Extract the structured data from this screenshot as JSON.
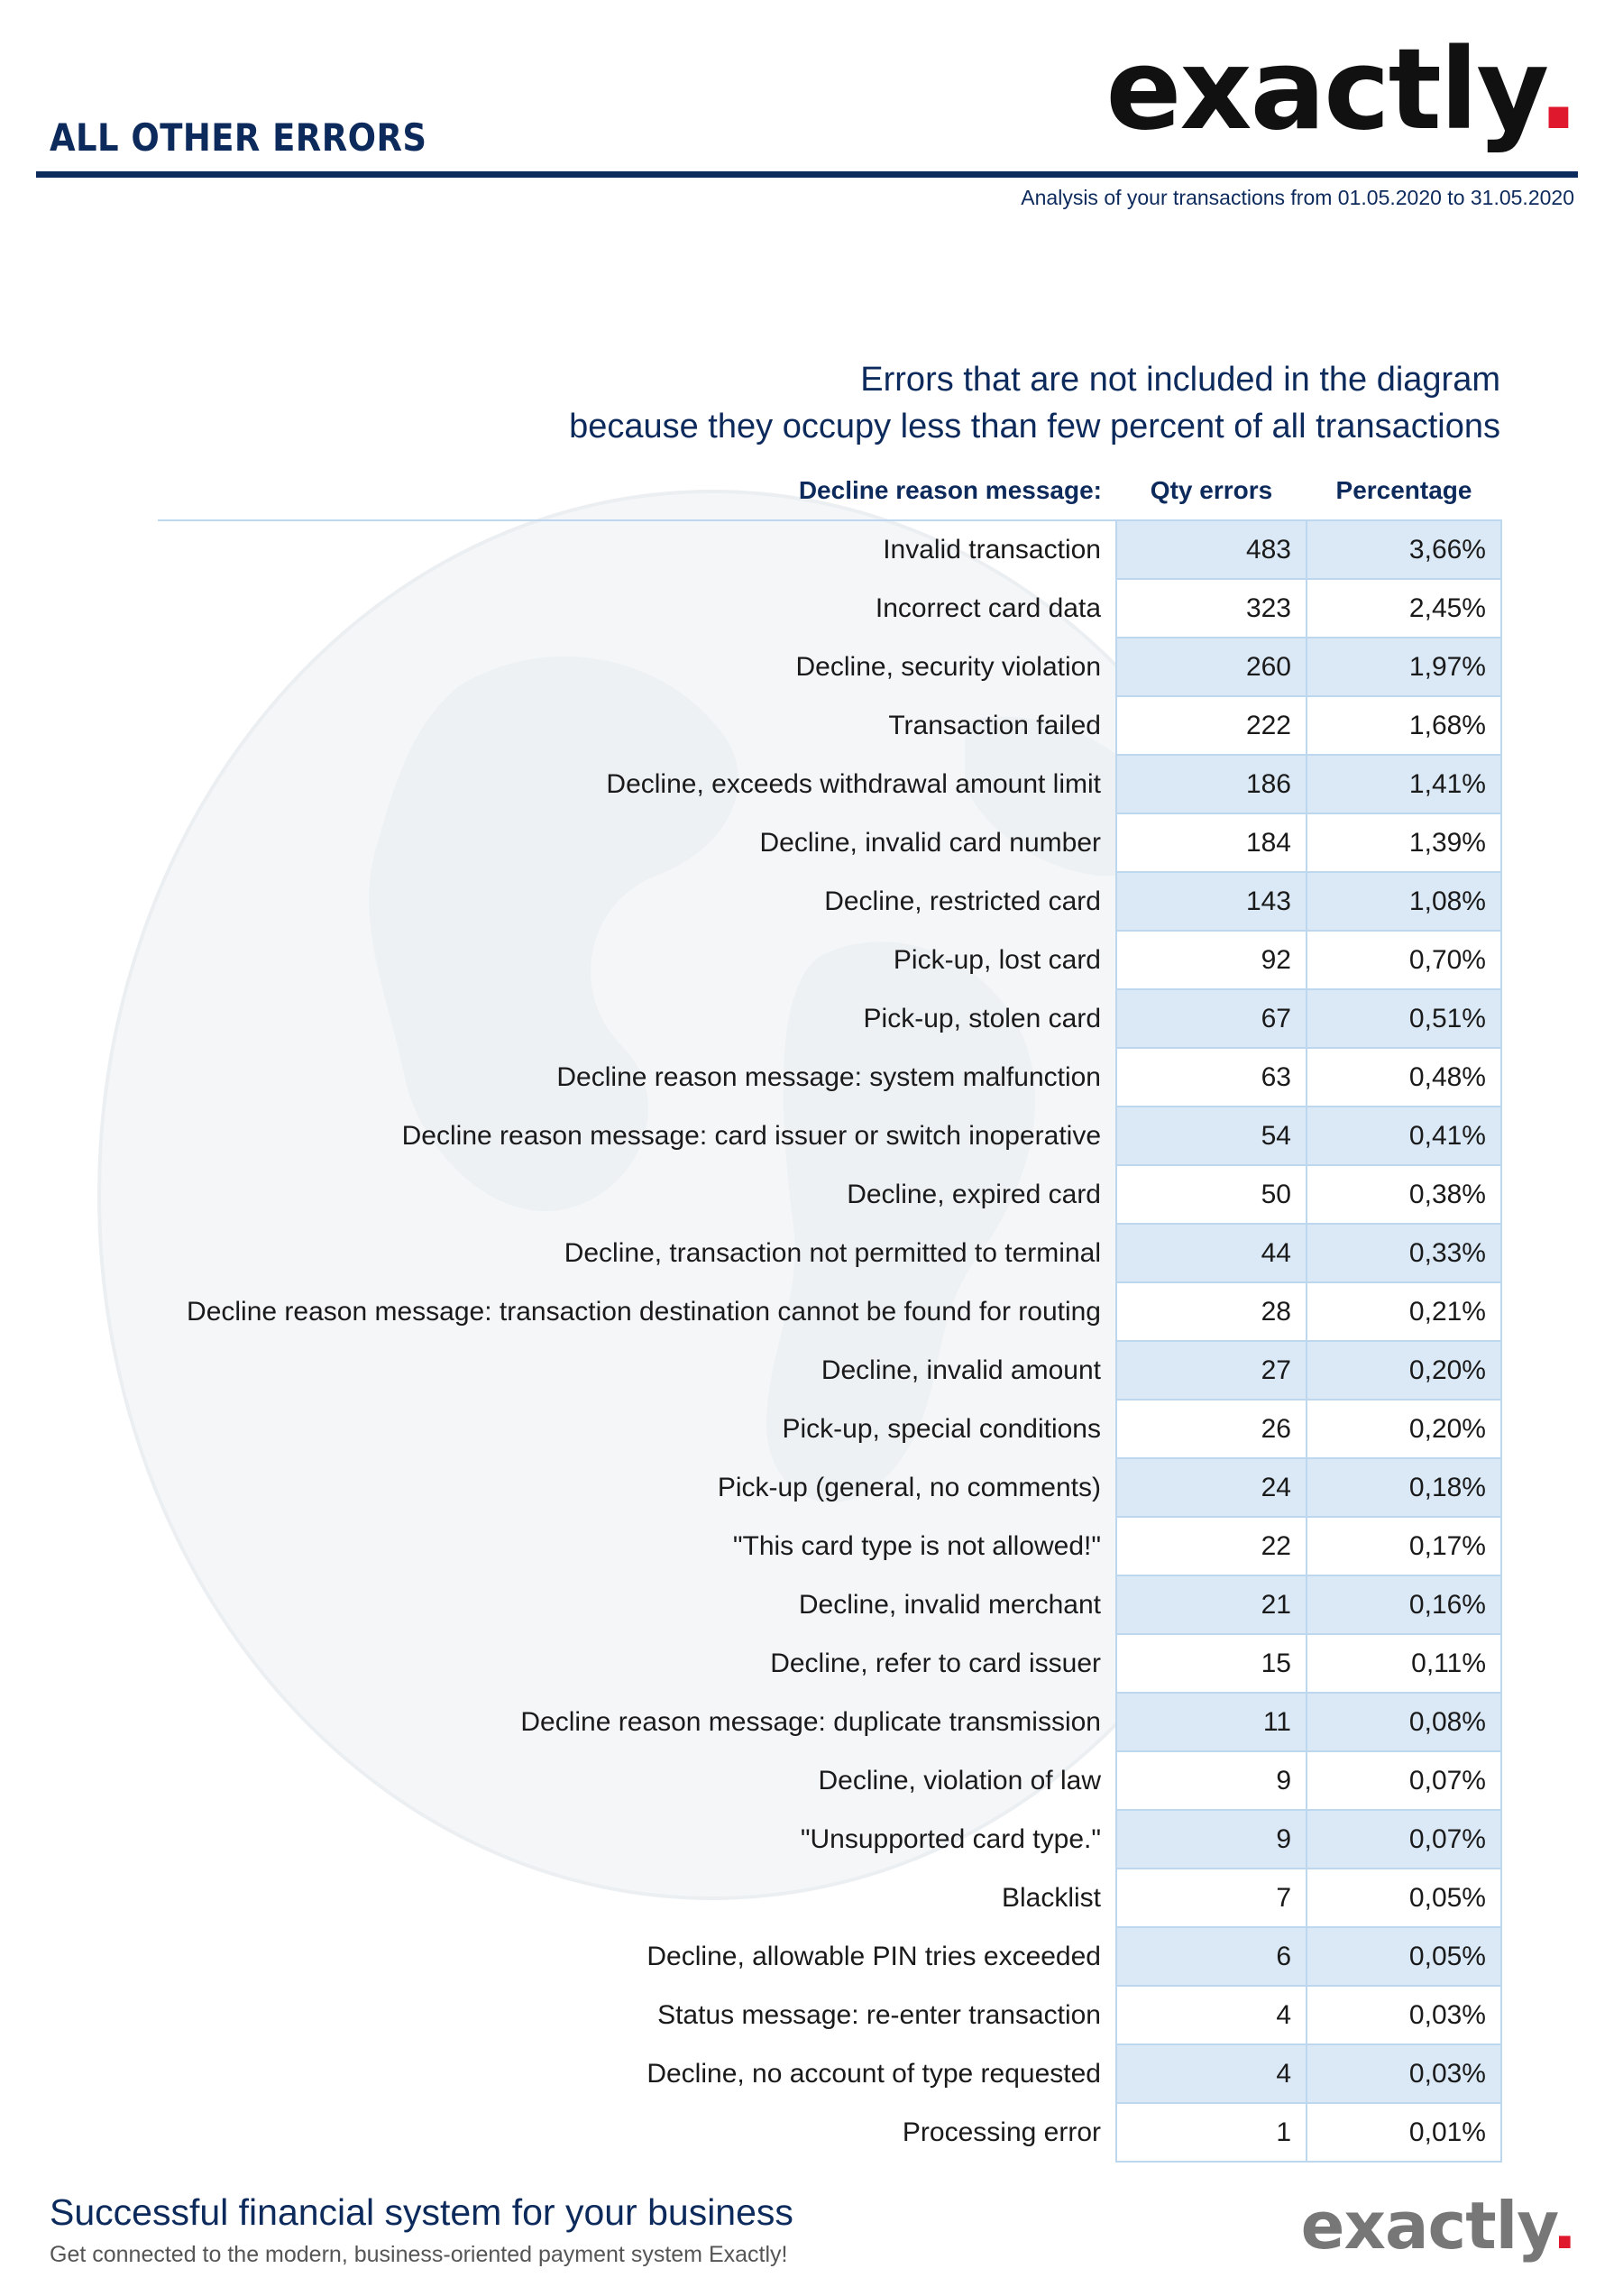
{
  "header": {
    "section_title": "ALL OTHER ERRORS",
    "logo_text": "exactly",
    "logo_dot": ".",
    "period": "Analysis of your transactions from 01.05.2020 to 31.05.2020"
  },
  "subtitle": {
    "line1": "Errors that are not included in the diagram",
    "line2": "because they occupy less than few percent of all transactions"
  },
  "table": {
    "columns": [
      "Decline reason message:",
      "Qty errors",
      "Percentage"
    ],
    "rows": [
      {
        "message": "Invalid transaction",
        "qty": "483",
        "pct": "3,66%"
      },
      {
        "message": "Incorrect card data",
        "qty": "323",
        "pct": "2,45%"
      },
      {
        "message": "Decline, security violation",
        "qty": "260",
        "pct": "1,97%"
      },
      {
        "message": "Transaction failed",
        "qty": "222",
        "pct": "1,68%"
      },
      {
        "message": "Decline, exceeds withdrawal amount limit",
        "qty": "186",
        "pct": "1,41%"
      },
      {
        "message": "Decline, invalid card number",
        "qty": "184",
        "pct": "1,39%"
      },
      {
        "message": "Decline, restricted card",
        "qty": "143",
        "pct": "1,08%"
      },
      {
        "message": "Pick-up, lost card",
        "qty": "92",
        "pct": "0,70%"
      },
      {
        "message": "Pick-up, stolen card",
        "qty": "67",
        "pct": "0,51%"
      },
      {
        "message": "Decline reason message: system malfunction",
        "qty": "63",
        "pct": "0,48%"
      },
      {
        "message": "Decline reason message: card issuer or switch inoperative",
        "qty": "54",
        "pct": "0,41%"
      },
      {
        "message": "Decline, expired card",
        "qty": "50",
        "pct": "0,38%"
      },
      {
        "message": "Decline, transaction not permitted to terminal",
        "qty": "44",
        "pct": "0,33%"
      },
      {
        "message": "Decline reason message: transaction destination cannot be found for routing",
        "qty": "28",
        "pct": "0,21%"
      },
      {
        "message": "Decline, invalid amount",
        "qty": "27",
        "pct": "0,20%"
      },
      {
        "message": "Pick-up, special conditions",
        "qty": "26",
        "pct": "0,20%"
      },
      {
        "message": "Pick-up (general, no comments)",
        "qty": "24",
        "pct": "0,18%"
      },
      {
        "message": "\"This card type is not allowed!\"",
        "qty": "22",
        "pct": "0,17%"
      },
      {
        "message": "Decline, invalid merchant",
        "qty": "21",
        "pct": "0,16%"
      },
      {
        "message": "Decline, refer to card issuer",
        "qty": "15",
        "pct": "0,11%"
      },
      {
        "message": "Decline reason message: duplicate transmission",
        "qty": "11",
        "pct": "0,08%"
      },
      {
        "message": "Decline, violation of law",
        "qty": "9",
        "pct": "0,07%"
      },
      {
        "message": "\"Unsupported card type.\"",
        "qty": "9",
        "pct": "0,07%"
      },
      {
        "message": "Blacklist",
        "qty": "7",
        "pct": "0,05%"
      },
      {
        "message": "Decline, allowable PIN tries exceeded",
        "qty": "6",
        "pct": "0,05%"
      },
      {
        "message": "Status message: re-enter transaction",
        "qty": "4",
        "pct": "0,03%"
      },
      {
        "message": "Decline, no account of type requested",
        "qty": "4",
        "pct": "0,03%"
      },
      {
        "message": "Processing error",
        "qty": "1",
        "pct": "0,01%"
      }
    ]
  },
  "footer": {
    "title": "Successful financial system for your business",
    "subtitle": "Get connected to the modern, business-oriented payment system Exactly!",
    "logo_text": "exactly",
    "logo_dot": "."
  },
  "colors": {
    "navy": "#0d2a5c",
    "accent_red": "#e0182d",
    "row_shade": "#dbe9f6",
    "cell_border": "#bcd7ee"
  }
}
